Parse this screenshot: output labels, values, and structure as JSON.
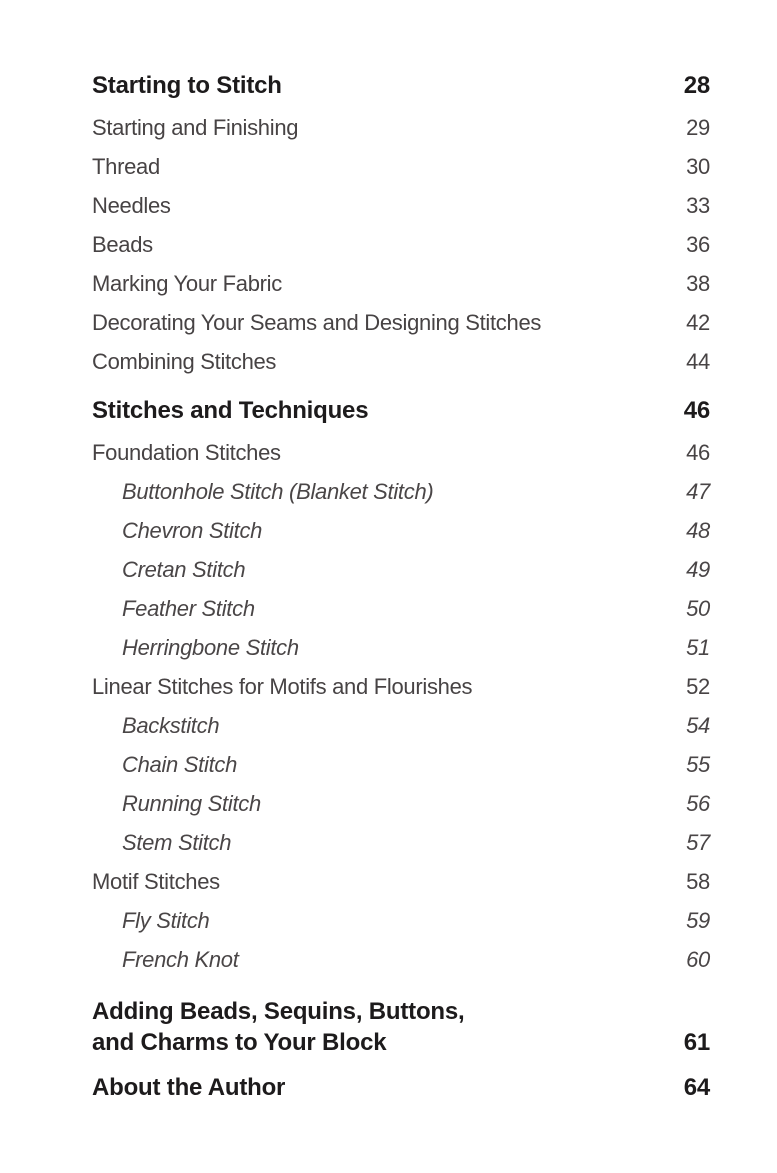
{
  "page": {
    "background_color": "#ffffff",
    "heading_color": "#1d1b1c",
    "body_text_color": "#474344"
  },
  "toc": {
    "rows": [
      {
        "label": "Starting to Stitch",
        "page": "28",
        "style": "chapter"
      },
      {
        "label": "Starting and Finishing",
        "page": "29",
        "style": "section"
      },
      {
        "label": "Thread",
        "page": "30",
        "style": "section"
      },
      {
        "label": "Needles",
        "page": "33",
        "style": "section"
      },
      {
        "label": "Beads",
        "page": "36",
        "style": "section"
      },
      {
        "label": "Marking Your Fabric",
        "page": "38",
        "style": "section"
      },
      {
        "label": "Decorating Your Seams and Designing Stitches",
        "page": "42",
        "style": "section"
      },
      {
        "label": "Combining Stitches",
        "page": "44",
        "style": "section"
      },
      {
        "label": "Stitches and Techniques",
        "page": "46",
        "style": "chapter"
      },
      {
        "label": "Foundation Stitches",
        "page": "46",
        "style": "section"
      },
      {
        "label": "Buttonhole Stitch (Blanket Stitch)",
        "page": "47",
        "style": "sub"
      },
      {
        "label": "Chevron Stitch",
        "page": "48",
        "style": "sub"
      },
      {
        "label": "Cretan Stitch",
        "page": "49",
        "style": "sub"
      },
      {
        "label": "Feather Stitch",
        "page": "50",
        "style": "sub"
      },
      {
        "label": "Herringbone Stitch",
        "page": "51",
        "style": "sub"
      },
      {
        "label": "Linear Stitches for Motifs and Flourishes",
        "page": "52",
        "style": "section"
      },
      {
        "label": "Backstitch",
        "page": "54",
        "style": "sub"
      },
      {
        "label": "Chain Stitch",
        "page": "55",
        "style": "sub"
      },
      {
        "label": "Running Stitch",
        "page": "56",
        "style": "sub"
      },
      {
        "label": "Stem Stitch",
        "page": "57",
        "style": "sub"
      },
      {
        "label": "Motif Stitches",
        "page": "58",
        "style": "section"
      },
      {
        "label": "Fly Stitch",
        "page": "59",
        "style": "sub"
      },
      {
        "label": "French Knot",
        "page": "60",
        "style": "sub"
      },
      {
        "label": "Adding Beads, Sequins, Buttons,",
        "page": "",
        "style": "chapter2a"
      },
      {
        "label": "and Charms to Your Block",
        "page": "61",
        "style": "chapter2b"
      },
      {
        "label": "About the Author",
        "page": "64",
        "style": "chapter"
      }
    ]
  }
}
